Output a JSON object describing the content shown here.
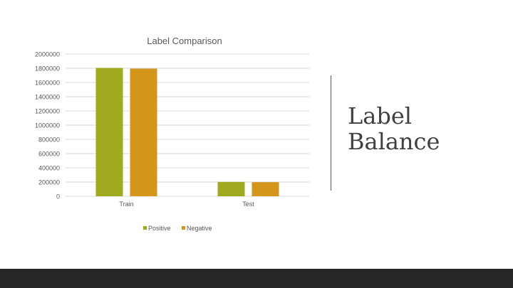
{
  "slide": {
    "title_lines": [
      "Label",
      "Balance"
    ]
  },
  "colors": {
    "positive": "#9faa1e",
    "negative": "#d3961a",
    "gridline": "#d9d9d9",
    "axis_text": "#595959",
    "footer": "#262626"
  },
  "chart_data": {
    "type": "bar",
    "title": "Label Comparison",
    "categories": [
      "Train",
      "Test"
    ],
    "series": [
      {
        "name": "Positive",
        "values": [
          1805000,
          202000
        ]
      },
      {
        "name": "Negative",
        "values": [
          1795000,
          198000
        ]
      }
    ],
    "xlabel": "",
    "ylabel": "",
    "ylim": [
      0,
      2000000
    ],
    "yticks": [
      "0",
      "200000",
      "400000",
      "600000",
      "800000",
      "1000000",
      "1200000",
      "1400000",
      "1600000",
      "1800000",
      "2000000"
    ],
    "grid": true,
    "legend_position": "bottom"
  }
}
